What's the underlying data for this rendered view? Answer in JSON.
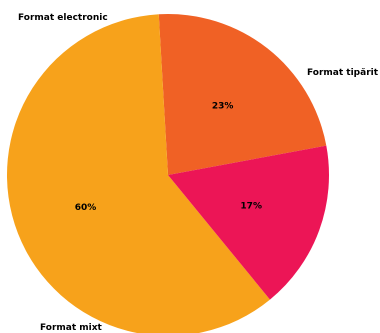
{
  "chart_data": {
    "type": "pie",
    "title": "",
    "slices": [
      {
        "label": "Format tipărit",
        "value": 23,
        "percent_label": "23%",
        "color": "#f06125"
      },
      {
        "label": "Format mixt",
        "value": 60,
        "percent_label": "60%",
        "color": "#f7a21b"
      },
      {
        "label": "Format electronic",
        "value": 17,
        "percent_label": "17%",
        "color": "#ec1556"
      }
    ],
    "legend": "none"
  }
}
